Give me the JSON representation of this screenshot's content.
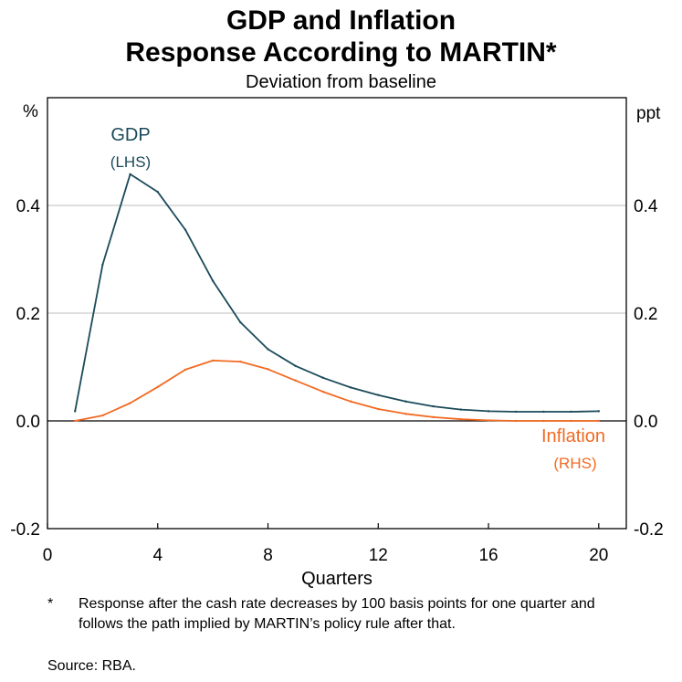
{
  "chart_data": {
    "type": "line",
    "title_line1": "GDP and Inflation",
    "title_line2": "Response According to MARTIN*",
    "subtitle": "Deviation  from baseline",
    "xlabel": "Quarters",
    "ylabel_left": "%",
    "ylabel_right": "ppt",
    "xlim": [
      0,
      21
    ],
    "ylim": [
      -0.2,
      0.6
    ],
    "x_ticks": [
      0,
      4,
      8,
      12,
      16,
      20
    ],
    "y_ticks": [
      -0.2,
      0.0,
      0.2,
      0.4
    ],
    "y_tick_labels": [
      "-0.2",
      "0.0",
      "0.2",
      "0.4"
    ],
    "x": [
      1,
      2,
      3,
      4,
      5,
      6,
      7,
      8,
      9,
      10,
      11,
      12,
      13,
      14,
      15,
      16,
      17,
      18,
      19,
      20
    ],
    "series": [
      {
        "name": "GDP",
        "label_line1": "GDP",
        "label_line2": "(LHS)",
        "axis": "left",
        "color": "#1b4a5a",
        "values": [
          0.018,
          0.29,
          0.458,
          0.425,
          0.355,
          0.26,
          0.183,
          0.133,
          0.102,
          0.08,
          0.062,
          0.048,
          0.036,
          0.027,
          0.021,
          0.018,
          0.017,
          0.017,
          0.017,
          0.018
        ]
      },
      {
        "name": "Inflation",
        "label_line1": "Inflation",
        "label_line2": "(RHS)",
        "axis": "right",
        "color": "#f26a22",
        "values": [
          0.0,
          0.01,
          0.033,
          0.063,
          0.095,
          0.112,
          0.11,
          0.096,
          0.075,
          0.054,
          0.036,
          0.022,
          0.013,
          0.007,
          0.003,
          0.001,
          0.0,
          0.0,
          0.0,
          0.0
        ]
      }
    ]
  },
  "footnote_marker": "*",
  "footnote": "Response after the cash rate decreases by 100 basis points for one quarter and follows the path implied by MARTIN’s policy rule after that.",
  "source": "Source: RBA."
}
